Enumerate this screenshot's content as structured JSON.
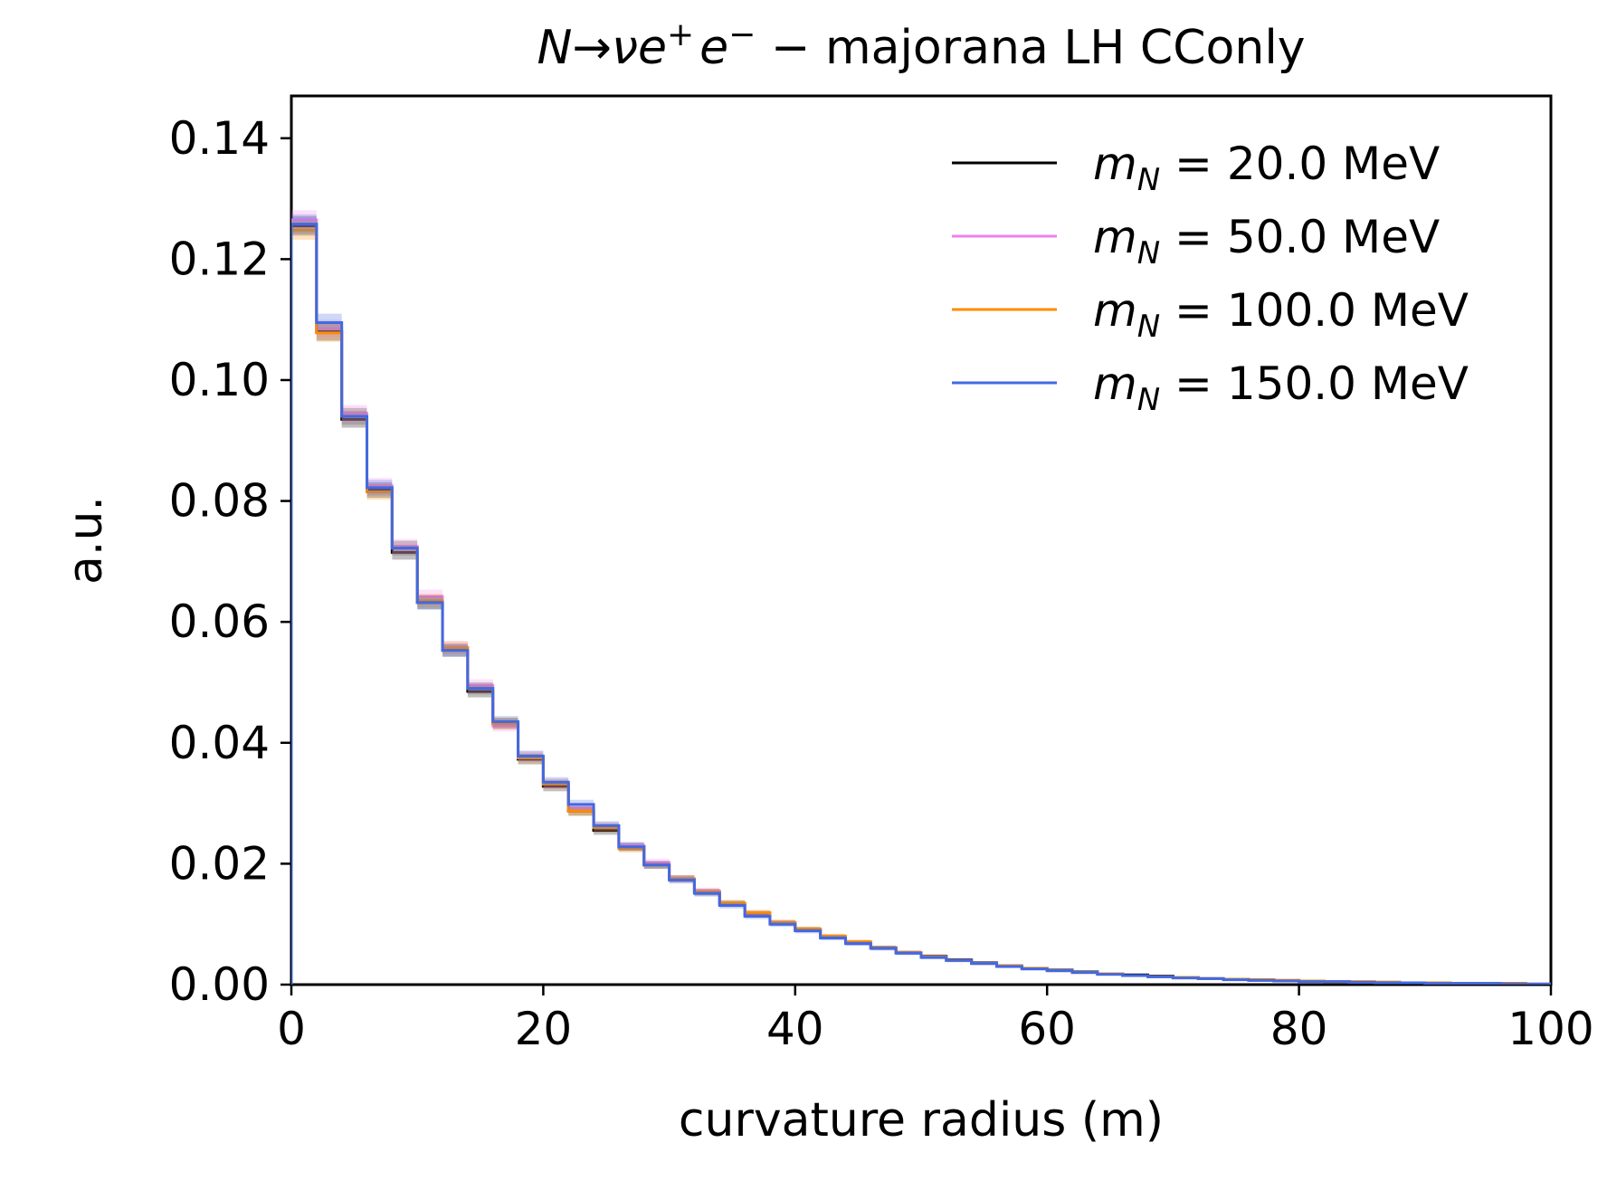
{
  "chart_data": {
    "type": "step-histogram",
    "title_parts": {
      "N": "N",
      "arrow": "→",
      "nu": "ν",
      "e1": "e",
      "plus": "+",
      "e2": "e",
      "minus": "−",
      "rest": " − majorana LH CConly"
    },
    "xlabel": "curvature radius (m)",
    "ylabel": "a.u.",
    "xlim": [
      0,
      100
    ],
    "ylim": [
      0,
      0.147
    ],
    "xticks": [
      "0",
      "20",
      "40",
      "60",
      "80",
      "100"
    ],
    "yticks": [
      "0.00",
      "0.02",
      "0.04",
      "0.06",
      "0.08",
      "0.10",
      "0.12",
      "0.14"
    ],
    "legend_position": "upper right",
    "bin_edges": [
      0,
      2,
      4,
      6,
      8,
      10,
      12,
      14,
      16,
      18,
      20,
      22,
      24,
      26,
      28,
      30,
      32,
      34,
      36,
      38,
      40,
      42,
      44,
      46,
      48,
      50,
      52,
      54,
      56,
      58,
      60,
      62,
      64,
      66,
      68,
      70,
      72,
      74,
      76,
      78,
      80,
      82,
      84,
      86,
      88,
      90,
      92,
      94,
      96,
      98,
      100
    ],
    "series": [
      {
        "label_main": "m",
        "label_sub": "N",
        "label_value": " = 20.0 MeV",
        "color": "#000000",
        "values": [
          0.1255,
          0.108,
          0.0935,
          0.0818,
          0.0715,
          0.0632,
          0.0553,
          0.0485,
          0.0432,
          0.0373,
          0.0328,
          0.0287,
          0.0255,
          0.0228,
          0.0198,
          0.0175,
          0.0153,
          0.0134,
          0.0117,
          0.0102,
          0.0091,
          0.0079,
          0.0069,
          0.0061,
          0.0053,
          0.0047,
          0.0041,
          0.0036,
          0.0031,
          0.0027,
          0.0024,
          0.0021,
          0.0018,
          0.0016,
          0.0014,
          0.0012,
          0.001,
          0.0009,
          0.0008,
          0.0007,
          0.0006,
          0.0005,
          0.0004,
          0.0004,
          0.0003,
          0.0003,
          0.0002,
          0.0002,
          0.0002,
          0.0001
        ]
      },
      {
        "label_main": "m",
        "label_sub": "N",
        "label_value": " = 50.0 MeV",
        "color": "#ee82ee",
        "values": [
          0.1265,
          0.1085,
          0.0945,
          0.0825,
          0.0725,
          0.0642,
          0.0558,
          0.0495,
          0.0428,
          0.0378,
          0.0332,
          0.0292,
          0.0262,
          0.023,
          0.0202,
          0.0175,
          0.0155,
          0.0133,
          0.0118,
          0.0102,
          0.009,
          0.0079,
          0.0069,
          0.006,
          0.0053,
          0.0046,
          0.004,
          0.0035,
          0.003,
          0.0026,
          0.0023,
          0.002,
          0.0017,
          0.0015,
          0.0013,
          0.0011,
          0.001,
          0.0009,
          0.0007,
          0.0006,
          0.0005,
          0.0005,
          0.0004,
          0.0003,
          0.0003,
          0.0002,
          0.0002,
          0.0002,
          0.0001,
          0.0001
        ]
      },
      {
        "label_main": "m",
        "label_sub": "N",
        "label_value": " = 100.0 MeV",
        "color": "#ff8c00",
        "values": [
          0.1248,
          0.1078,
          0.094,
          0.0815,
          0.0722,
          0.0635,
          0.0557,
          0.049,
          0.0432,
          0.0375,
          0.0332,
          0.0287,
          0.026,
          0.0225,
          0.0198,
          0.0175,
          0.0153,
          0.0135,
          0.0119,
          0.0103,
          0.0092,
          0.008,
          0.0071,
          0.0061,
          0.0053,
          0.0046,
          0.004,
          0.0035,
          0.0031,
          0.0027,
          0.0023,
          0.002,
          0.0018,
          0.0015,
          0.0013,
          0.0012,
          0.001,
          0.0009,
          0.0008,
          0.0007,
          0.0006,
          0.0005,
          0.0005,
          0.0004,
          0.0003,
          0.0003,
          0.0002,
          0.0002,
          0.0002,
          0.0001
        ]
      },
      {
        "label_main": "m",
        "label_sub": "N",
        "label_value": " = 150.0 MeV",
        "color": "#4169e1",
        "values": [
          0.1258,
          0.1095,
          0.094,
          0.0822,
          0.0722,
          0.0632,
          0.0553,
          0.049,
          0.0435,
          0.0378,
          0.0335,
          0.0298,
          0.0263,
          0.0228,
          0.0198,
          0.0173,
          0.0151,
          0.0131,
          0.0113,
          0.01,
          0.0089,
          0.0077,
          0.0068,
          0.006,
          0.0052,
          0.0045,
          0.004,
          0.0035,
          0.003,
          0.0026,
          0.0023,
          0.002,
          0.0017,
          0.0015,
          0.0013,
          0.0011,
          0.001,
          0.0008,
          0.0007,
          0.0006,
          0.0005,
          0.0005,
          0.0004,
          0.0003,
          0.0003,
          0.0002,
          0.0002,
          0.0002,
          0.0001,
          0.0001
        ]
      }
    ]
  }
}
